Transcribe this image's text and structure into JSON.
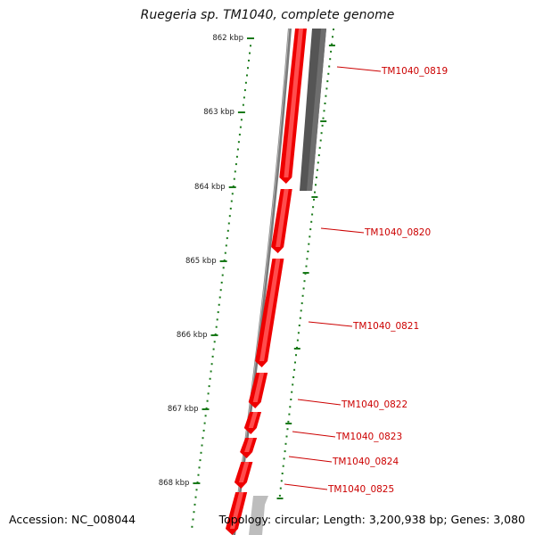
{
  "title": "Ruegeria sp. TM1040, complete genome",
  "footer": {
    "accession": "Accession: NC_008044",
    "summary": "Topology: circular; Length: 3,200,938 bp; Genes: 3,080"
  },
  "ticks": [
    "862 kbp",
    "863 kbp",
    "864 kbp",
    "865 kbp",
    "866 kbp",
    "867 kbp",
    "868 kbp"
  ],
  "genes": [
    "TM1040_0819",
    "TM1040_0820",
    "TM1040_0821",
    "TM1040_0822",
    "TM1040_0823",
    "TM1040_0824",
    "TM1040_0825"
  ],
  "colors": {
    "forward_strand": "#ee0000",
    "reverse_strand": "#555555",
    "backbone": "#7a7a7a",
    "tick": "#1a7a1a",
    "gene_label": "#cc0000"
  }
}
